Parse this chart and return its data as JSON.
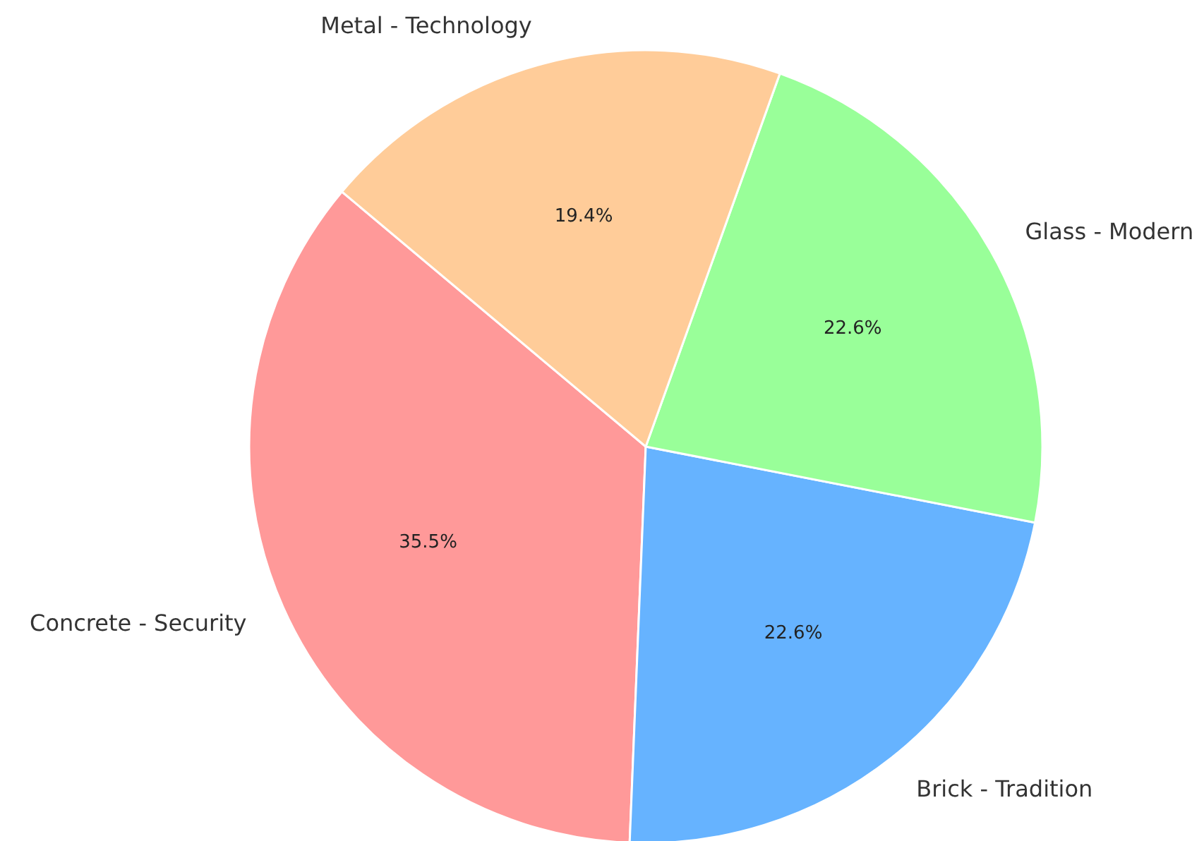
{
  "chart_data": {
    "type": "pie",
    "categories": [
      "Concrete - Security",
      "Brick - Tradition",
      "Glass - Modern",
      "Metal - Technology"
    ],
    "values": [
      35.5,
      22.6,
      22.6,
      19.4
    ],
    "colors": [
      "#ff9999",
      "#66b3ff",
      "#99ff99",
      "#ffcc99"
    ],
    "value_labels": [
      "35.5%",
      "22.6%",
      "22.6%",
      "19.4%"
    ]
  }
}
